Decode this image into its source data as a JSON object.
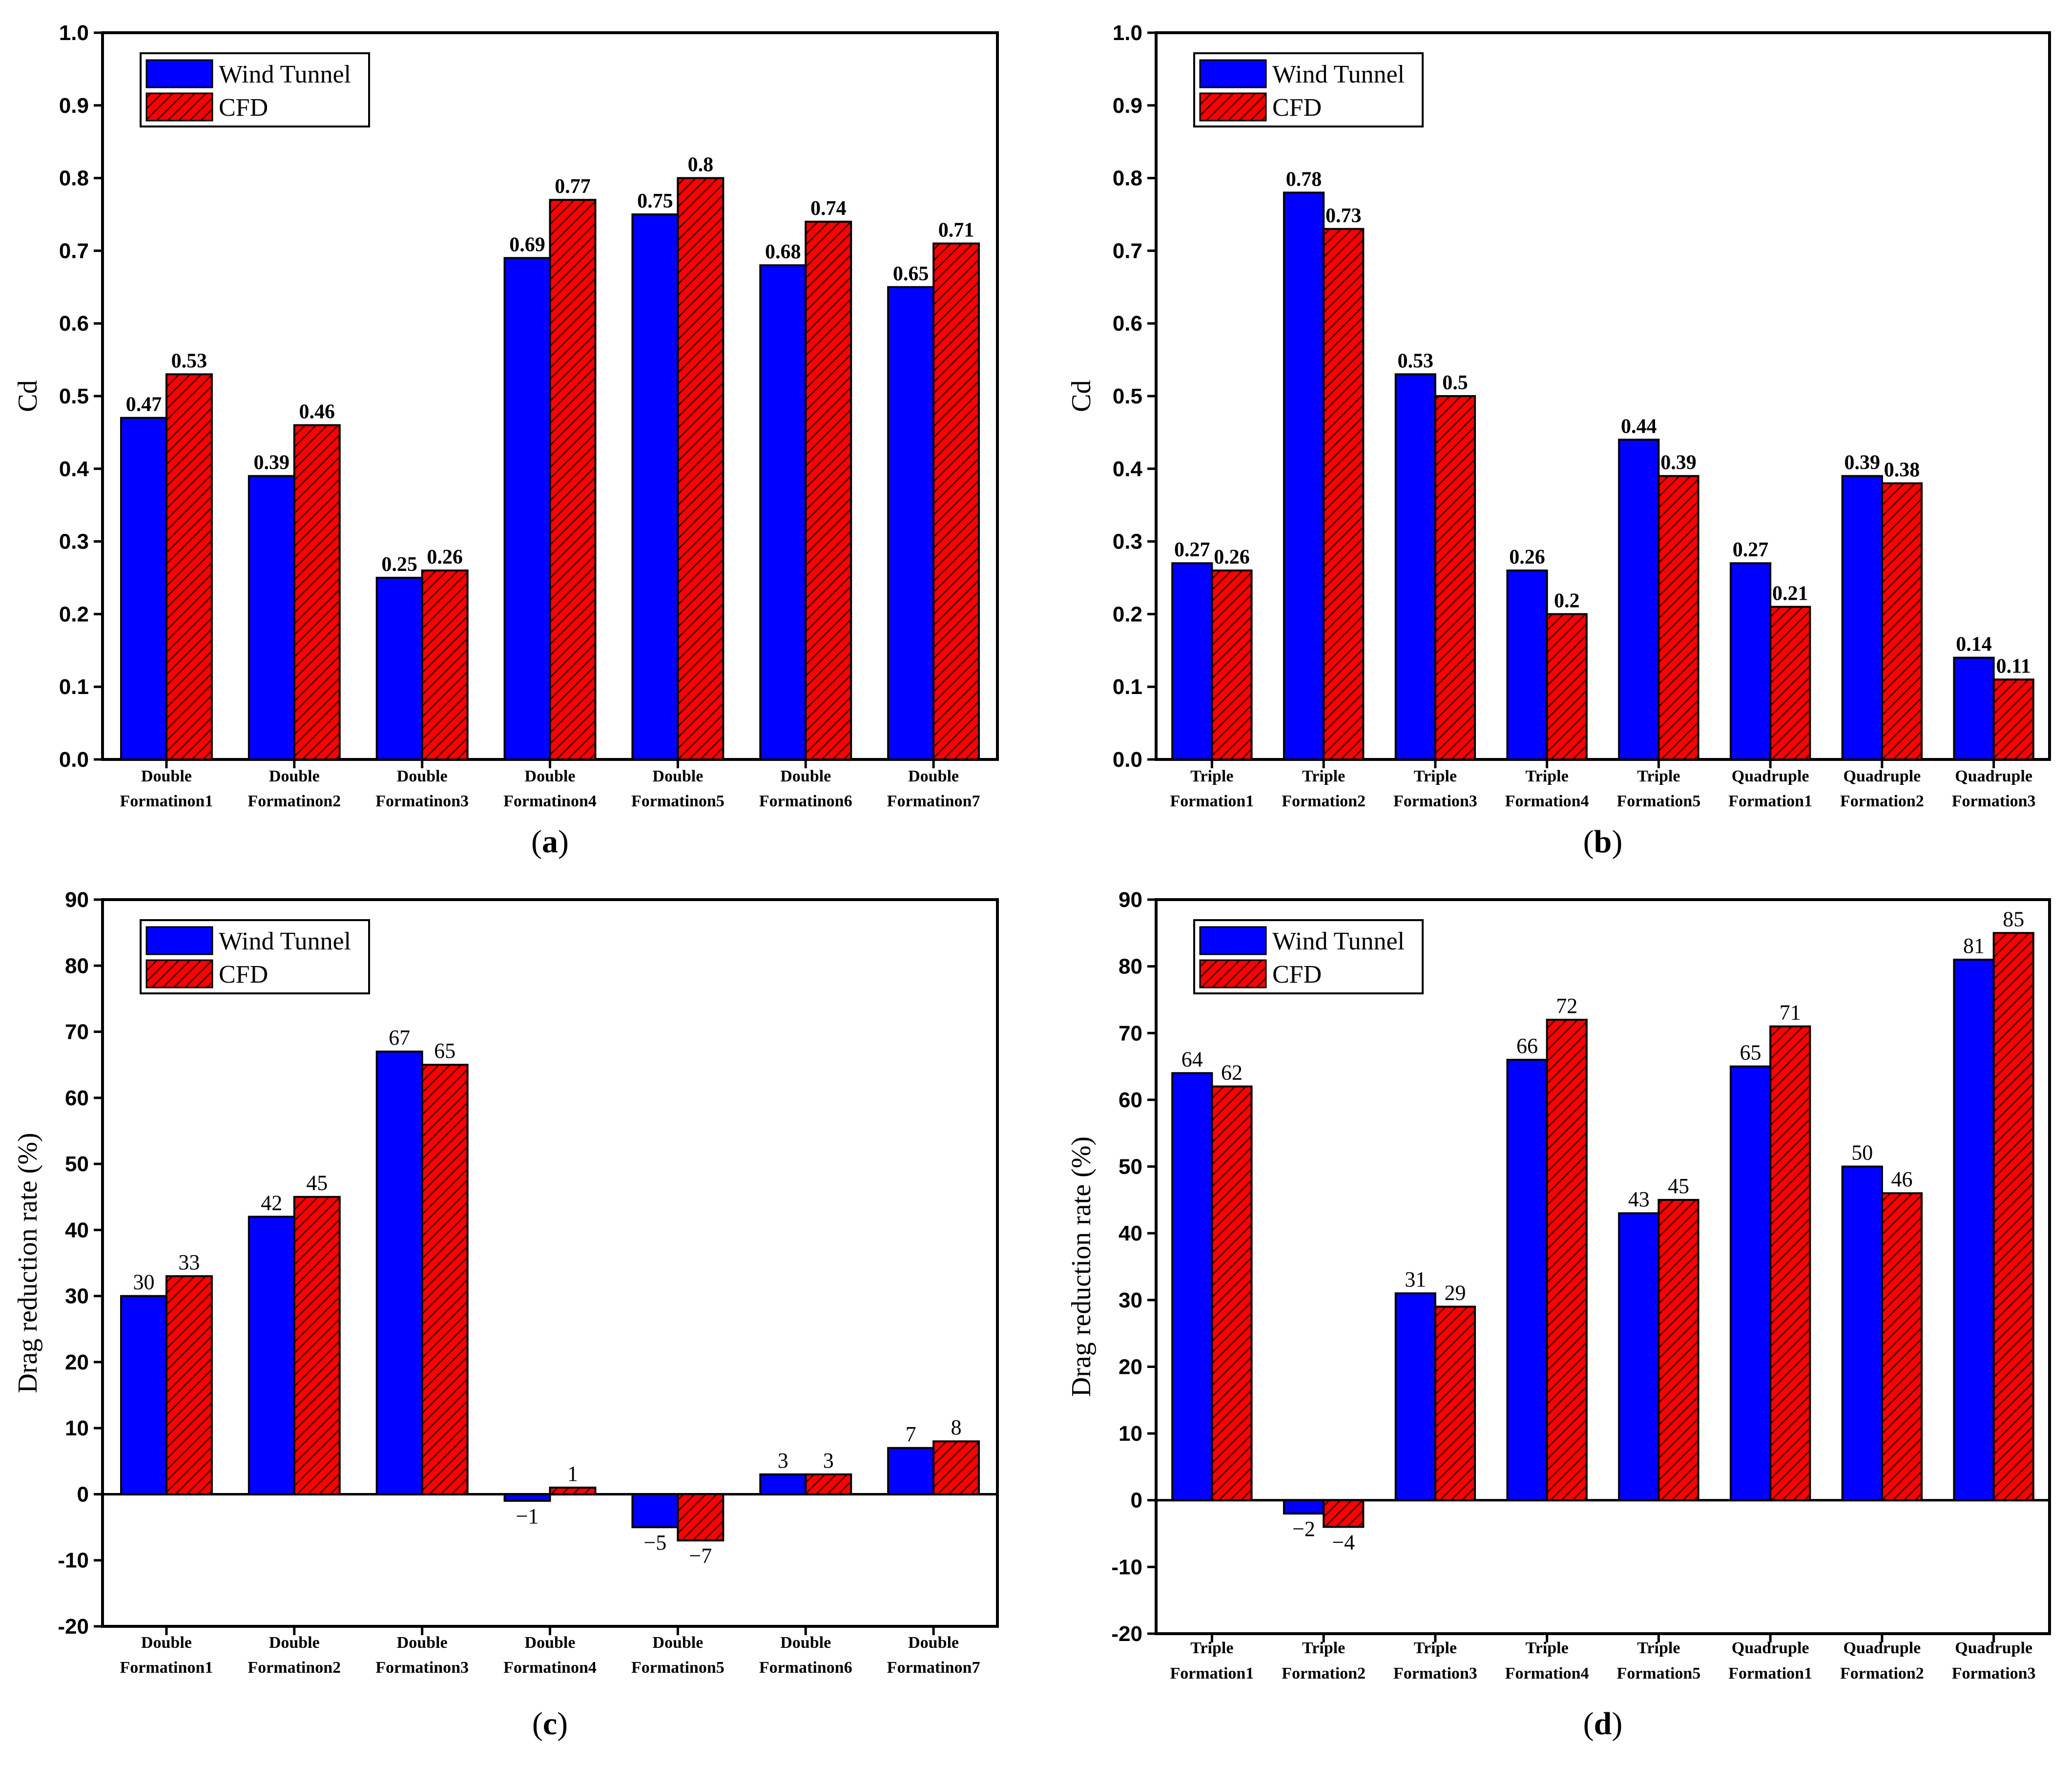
{
  "colors": {
    "wind_tunnel": "#0000ff",
    "cfd": "#ff0000",
    "hatch": "#4a0000",
    "axis": "#000000"
  },
  "legend": {
    "wind_tunnel": "Wind Tunnel",
    "cfd": "CFD"
  },
  "chart_data": [
    {
      "id": "a",
      "type": "bar",
      "panel_label": "a",
      "ylabel": "Cd",
      "xlabel": "",
      "ylim": [
        0,
        1.0
      ],
      "yticks": [
        0,
        0.1,
        0.2,
        0.3,
        0.4,
        0.5,
        0.6,
        0.7,
        0.8,
        0.9,
        1.0
      ],
      "ytick_labels": [
        "0.0",
        "0.1",
        "0.2",
        "0.3",
        "0.4",
        "0.5",
        "0.6",
        "0.7",
        "0.8",
        "0.9",
        "1.0"
      ],
      "label_style": "bold",
      "legend_position": "top-left",
      "categories": [
        [
          "Double",
          "Formatinon1"
        ],
        [
          "Double",
          "Formatinon2"
        ],
        [
          "Double",
          "Formatinon3"
        ],
        [
          "Double",
          "Formatinon4"
        ],
        [
          "Double",
          "Formatinon5"
        ],
        [
          "Double",
          "Formatinon6"
        ],
        [
          "Double",
          "Formatinon7"
        ]
      ],
      "series": [
        {
          "name": "Wind Tunnel",
          "values": [
            0.47,
            0.39,
            0.25,
            0.69,
            0.75,
            0.68,
            0.65
          ],
          "labels": [
            "0.47",
            "0.39",
            "0.25",
            "0.69",
            "0.75",
            "0.68",
            "0.65"
          ]
        },
        {
          "name": "CFD",
          "values": [
            0.53,
            0.46,
            0.26,
            0.77,
            0.8,
            0.74,
            0.71
          ],
          "labels": [
            "0.53",
            "0.46",
            "0.26",
            "0.77",
            "0.8",
            "0.74",
            "0.71"
          ]
        }
      ]
    },
    {
      "id": "b",
      "type": "bar",
      "panel_label": "b",
      "ylabel": "Cd",
      "xlabel": "",
      "ylim": [
        0,
        1.0
      ],
      "yticks": [
        0,
        0.1,
        0.2,
        0.3,
        0.4,
        0.5,
        0.6,
        0.7,
        0.8,
        0.9,
        1.0
      ],
      "ytick_labels": [
        "0.0",
        "0.1",
        "0.2",
        "0.3",
        "0.4",
        "0.5",
        "0.6",
        "0.7",
        "0.8",
        "0.9",
        "1.0"
      ],
      "label_style": "bold",
      "legend_position": "top-left",
      "categories": [
        [
          "Triple",
          "Formation1"
        ],
        [
          "Triple",
          "Formation2"
        ],
        [
          "Triple",
          "Formation3"
        ],
        [
          "Triple",
          "Formation4"
        ],
        [
          "Triple",
          "Formation5"
        ],
        [
          "Quadruple",
          "Formation1"
        ],
        [
          "Quadruple",
          "Formation2"
        ],
        [
          "Quadruple",
          "Formation3"
        ]
      ],
      "series": [
        {
          "name": "Wind Tunnel",
          "values": [
            0.27,
            0.78,
            0.53,
            0.26,
            0.44,
            0.27,
            0.39,
            0.14
          ],
          "labels": [
            "0.27",
            "0.78",
            "0.53",
            "0.26",
            "0.44",
            "0.27",
            "0.39",
            "0.14"
          ]
        },
        {
          "name": "CFD",
          "values": [
            0.26,
            0.73,
            0.5,
            0.2,
            0.39,
            0.21,
            0.38,
            0.11
          ],
          "labels": [
            "0.26",
            "0.73",
            "0.5",
            "0.2",
            "0.39",
            "0.21",
            "0.38",
            "0.11"
          ]
        }
      ]
    },
    {
      "id": "c",
      "type": "bar",
      "panel_label": "c",
      "ylabel": "Drag  reduction  rate (%)",
      "xlabel": "",
      "ylim": [
        -20,
        90
      ],
      "yticks": [
        -20,
        -10,
        0,
        10,
        20,
        30,
        40,
        50,
        60,
        70,
        80,
        90
      ],
      "ytick_labels": [
        "-20",
        "-10",
        "0",
        "10",
        "20",
        "30",
        "40",
        "50",
        "60",
        "70",
        "80",
        "90"
      ],
      "label_style": "plain",
      "legend_position": "top-left",
      "categories": [
        [
          "Double",
          "Formatinon1"
        ],
        [
          "Double",
          "Formatinon2"
        ],
        [
          "Double",
          "Formatinon3"
        ],
        [
          "Double",
          "Formatinon4"
        ],
        [
          "Double",
          "Formatinon5"
        ],
        [
          "Double",
          "Formatinon6"
        ],
        [
          "Double",
          "Formatinon7"
        ]
      ],
      "series": [
        {
          "name": "Wind Tunnel",
          "values": [
            30,
            42,
            67,
            -1,
            -5,
            3,
            7
          ],
          "labels": [
            "30",
            "42",
            "67",
            "−1",
            "−5",
            "3",
            "7"
          ]
        },
        {
          "name": "CFD",
          "values": [
            33,
            45,
            65,
            1,
            -7,
            3,
            8
          ],
          "labels": [
            "33",
            "45",
            "65",
            "1",
            "−7",
            "3",
            "8"
          ]
        }
      ]
    },
    {
      "id": "d",
      "type": "bar",
      "panel_label": "d",
      "ylabel": "Drag  reduction  rate (%)",
      "xlabel": "",
      "ylim": [
        -20,
        90
      ],
      "yticks": [
        -20,
        -10,
        0,
        10,
        20,
        30,
        40,
        50,
        60,
        70,
        80,
        90
      ],
      "ytick_labels": [
        "-20",
        "-10",
        "0",
        "10",
        "20",
        "30",
        "40",
        "50",
        "60",
        "70",
        "80",
        "90"
      ],
      "label_style": "plain",
      "legend_position": "top-left",
      "categories": [
        [
          "Triple",
          "Formation1"
        ],
        [
          "Triple",
          "Formation2"
        ],
        [
          "Triple",
          "Formation3"
        ],
        [
          "Triple",
          "Formation4"
        ],
        [
          "Triple",
          "Formation5"
        ],
        [
          "Quadruple",
          "Formation1"
        ],
        [
          "Quadruple",
          "Formation2"
        ],
        [
          "Quadruple",
          "Formation3"
        ]
      ],
      "series": [
        {
          "name": "Wind Tunnel",
          "values": [
            64,
            -2,
            31,
            66,
            43,
            65,
            50,
            81
          ],
          "labels": [
            "64",
            "−2",
            "31",
            "66",
            "43",
            "65",
            "50",
            "81"
          ]
        },
        {
          "name": "CFD",
          "values": [
            62,
            -4,
            29,
            72,
            45,
            71,
            46,
            85
          ],
          "labels": [
            "62",
            "−4",
            "29",
            "72",
            "45",
            "71",
            "46",
            "85"
          ]
        }
      ]
    }
  ]
}
